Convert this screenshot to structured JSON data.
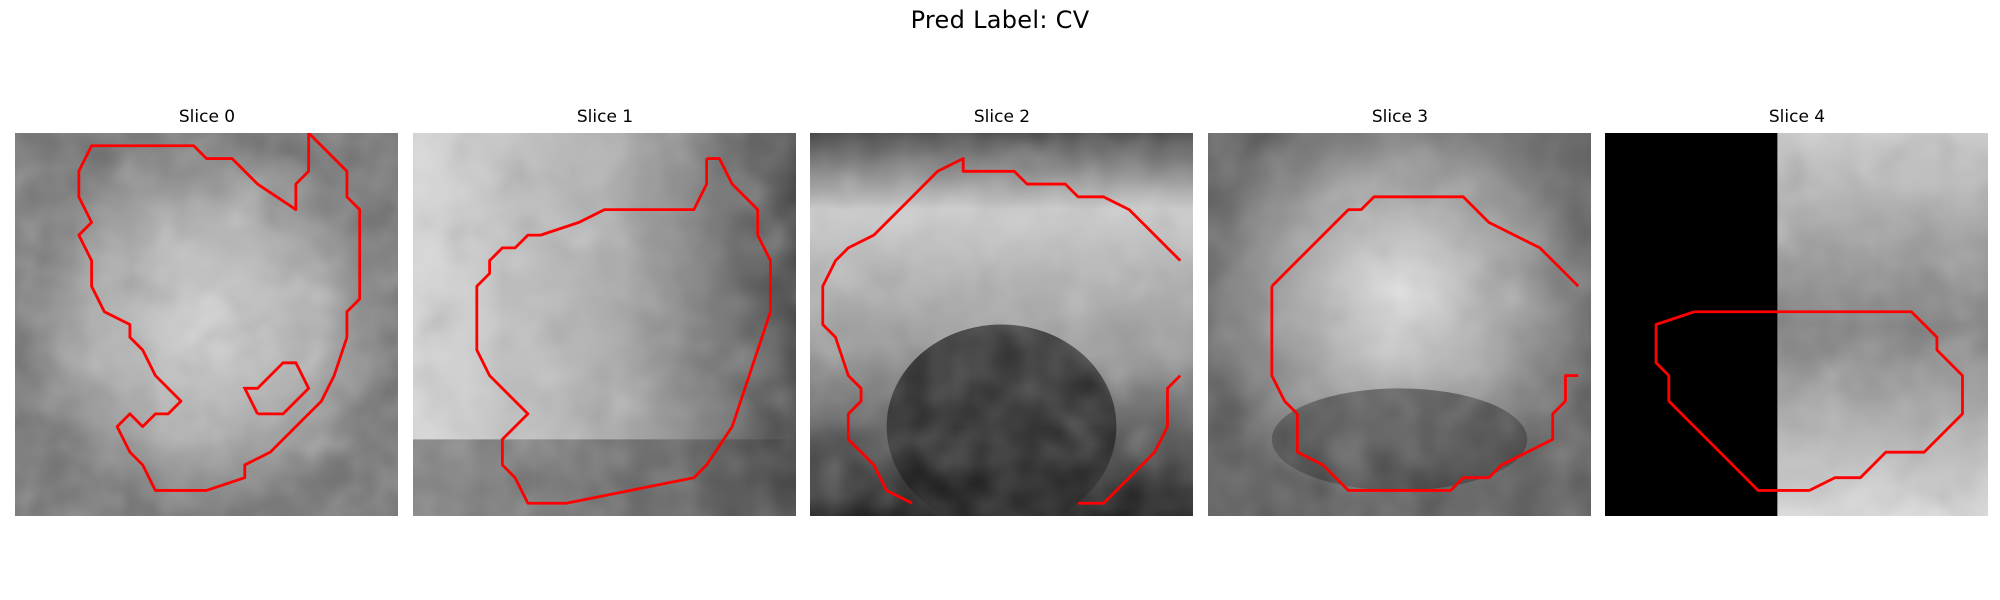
{
  "figure": {
    "title": "Pred Label: CV"
  },
  "panels": [
    {
      "title": "Slice 0"
    },
    {
      "title": "Slice 1"
    },
    {
      "title": "Slice 2"
    },
    {
      "title": "Slice 3"
    },
    {
      "title": "Slice 4"
    }
  ],
  "colors": {
    "contour": "#ff0000",
    "background": "#ffffff"
  }
}
